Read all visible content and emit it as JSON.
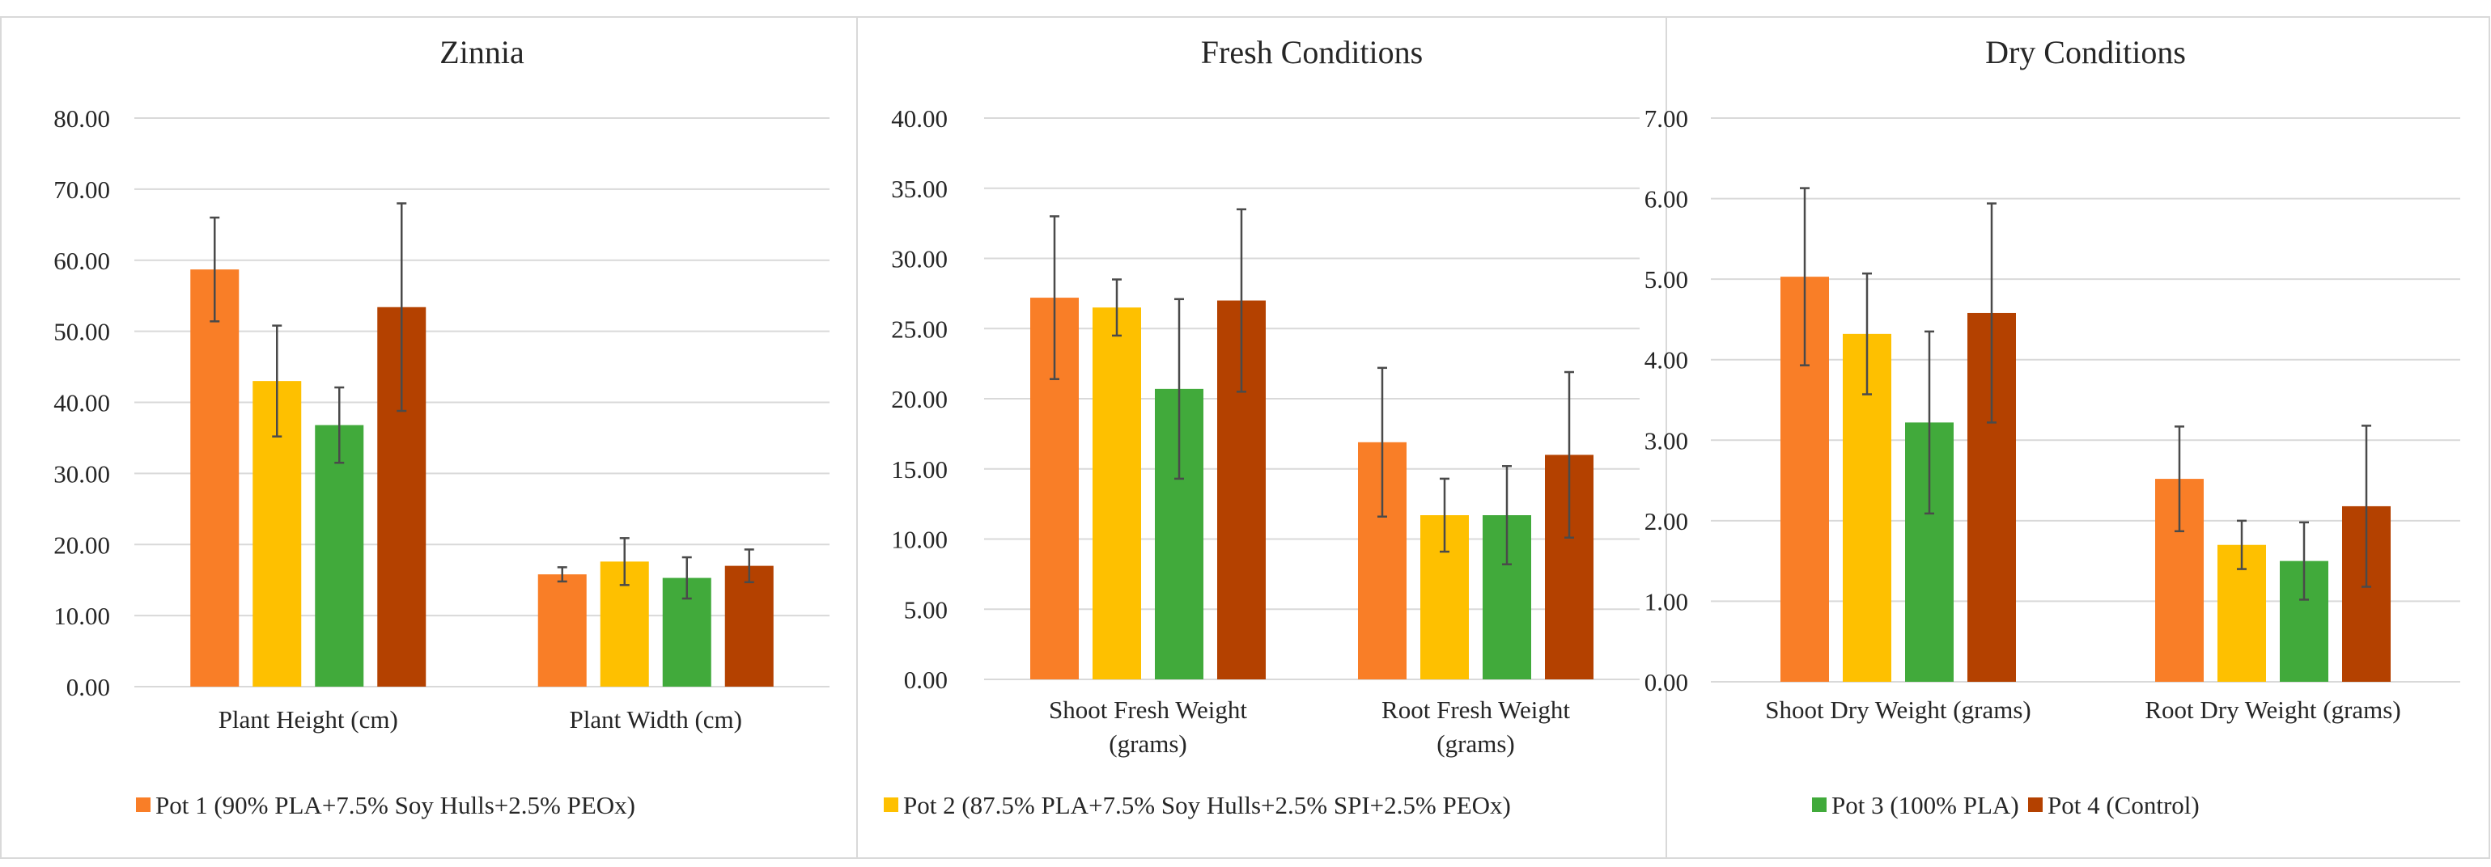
{
  "colors": {
    "pot1": "#F97E27",
    "pot2": "#FEC000",
    "pot3": "#41AA3B",
    "pot4": "#B44100"
  },
  "legend": [
    {
      "label": "Pot 1 (90% PLA+7.5% Soy Hulls+2.5% PEOx)",
      "color_key": "pot1"
    },
    {
      "label": "Pot 2 (87.5% PLA+7.5% Soy Hulls+2.5% SPI+2.5% PEOx)",
      "color_key": "pot2"
    },
    {
      "label": "Pot 3 (100% PLA)",
      "color_key": "pot3"
    },
    {
      "label": "Pot 4 (Control)",
      "color_key": "pot4"
    }
  ],
  "chart_data": [
    {
      "type": "bar",
      "title": "Zinnia",
      "categories": [
        [
          "Plant Height (cm)"
        ],
        [
          "Plant Width (cm)"
        ]
      ],
      "ylim": [
        0,
        80
      ],
      "yticks": [
        "0.00",
        "10.00",
        "20.00",
        "30.00",
        "40.00",
        "50.00",
        "60.00",
        "70.00",
        "80.00"
      ],
      "tick_step": 10,
      "series": [
        {
          "name": "Pot 1 (90% PLA+7.5% Soy Hulls+2.5% PEOx)",
          "color_key": "pot1",
          "values": [
            58.7,
            15.8
          ],
          "errors": [
            7.3,
            1.0
          ]
        },
        {
          "name": "Pot 2 (87.5% PLA+7.5% Soy Hulls+2.5% SPI+2.5% PEOx)",
          "color_key": "pot2",
          "values": [
            43.0,
            17.6
          ],
          "errors": [
            7.8,
            3.3
          ]
        },
        {
          "name": "Pot 3 (100% PLA)",
          "color_key": "pot3",
          "values": [
            36.8,
            15.3
          ],
          "errors": [
            5.3,
            2.9
          ]
        },
        {
          "name": "Pot 4 (Control)",
          "color_key": "pot4",
          "values": [
            53.4,
            17.0
          ],
          "errors": [
            14.6,
            2.3
          ]
        }
      ]
    },
    {
      "type": "bar",
      "title": "Fresh Conditions",
      "categories": [
        [
          "Shoot Fresh Weight",
          "(grams)"
        ],
        [
          "Root Fresh Weight",
          "(grams)"
        ]
      ],
      "ylim": [
        0,
        40
      ],
      "yticks": [
        "0.00",
        "5.00",
        "10.00",
        "15.00",
        "20.00",
        "25.00",
        "30.00",
        "35.00",
        "40.00"
      ],
      "tick_step": 5,
      "series": [
        {
          "name": "Pot 1 (90% PLA+7.5% Soy Hulls+2.5% PEOx)",
          "color_key": "pot1",
          "values": [
            27.2,
            16.9
          ],
          "errors": [
            5.8,
            5.3
          ]
        },
        {
          "name": "Pot 2 (87.5% PLA+7.5% Soy Hulls+2.5% SPI+2.5% PEOx)",
          "color_key": "pot2",
          "values": [
            26.5,
            11.7
          ],
          "errors": [
            2.0,
            2.6
          ]
        },
        {
          "name": "Pot 3 (100% PLA)",
          "color_key": "pot3",
          "values": [
            20.7,
            11.7
          ],
          "errors": [
            6.4,
            3.5
          ]
        },
        {
          "name": "Pot 4 (Control)",
          "color_key": "pot4",
          "values": [
            27.0,
            16.0
          ],
          "errors": [
            6.5,
            5.9
          ]
        }
      ]
    },
    {
      "type": "bar",
      "title": "Dry Conditions",
      "categories": [
        [
          "Shoot Dry Weight (grams)"
        ],
        [
          "Root Dry Weight (grams)"
        ]
      ],
      "ylim": [
        0,
        7
      ],
      "yticks": [
        "0.00",
        "1.00",
        "2.00",
        "3.00",
        "4.00",
        "5.00",
        "6.00",
        "7.00"
      ],
      "tick_step": 1,
      "series": [
        {
          "name": "Pot 1 (90% PLA+7.5% Soy Hulls+2.5% PEOx)",
          "color_key": "pot1",
          "values": [
            5.03,
            2.52
          ],
          "errors": [
            1.1,
            0.65
          ]
        },
        {
          "name": "Pot 2 (87.5% PLA+7.5% Soy Hulls+2.5% SPI+2.5% PEOx)",
          "color_key": "pot2",
          "values": [
            4.32,
            1.7
          ],
          "errors": [
            0.75,
            0.3
          ]
        },
        {
          "name": "Pot 3 (100% PLA)",
          "color_key": "pot3",
          "values": [
            3.22,
            1.5
          ],
          "errors": [
            1.13,
            0.48
          ]
        },
        {
          "name": "Pot 4 (Control)",
          "color_key": "pot4",
          "values": [
            4.58,
            2.18
          ],
          "errors": [
            1.36,
            1.0
          ]
        }
      ]
    }
  ]
}
